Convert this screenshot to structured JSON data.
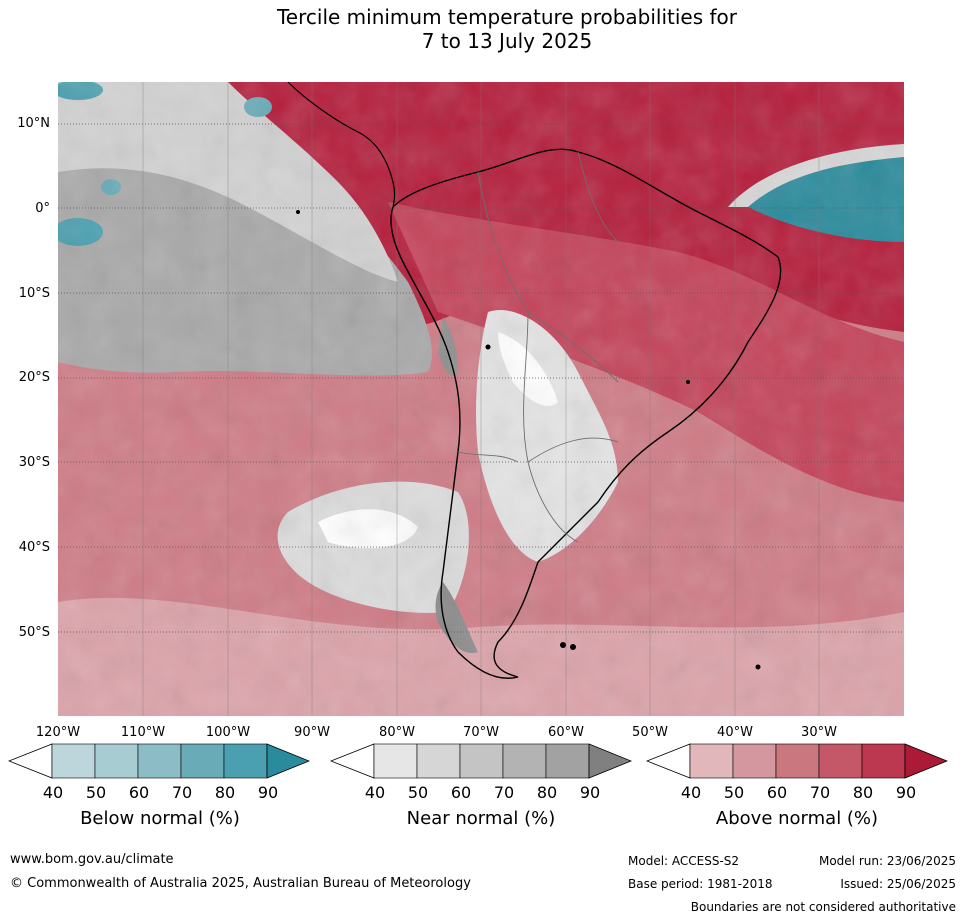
{
  "title_line1": "Tercile minimum temperature probabilities for",
  "title_line2": "7 to 13 July 2025",
  "lat_labels": [
    "10°N",
    "0°",
    "10°S",
    "20°S",
    "30°S",
    "40°S",
    "50°S"
  ],
  "lon_labels": [
    "120°W",
    "110°W",
    "100°W",
    "90°W",
    "80°W",
    "70°W",
    "60°W",
    "50°W",
    "40°W",
    "30°W"
  ],
  "colorbars": [
    {
      "name": "below",
      "title": "Below normal (%)",
      "ticks": [
        "40",
        "50",
        "60",
        "70",
        "80",
        "90"
      ],
      "colors": [
        "#ffffff",
        "#bdd6dc",
        "#a7ccd2",
        "#8cbcc5",
        "#6aabb8",
        "#4aa0b1",
        "#2a8b9c"
      ]
    },
    {
      "name": "near",
      "title": "Near normal (%)",
      "ticks": [
        "40",
        "50",
        "60",
        "70",
        "80",
        "90"
      ],
      "colors": [
        "#ffffff",
        "#e6e6e6",
        "#d6d6d6",
        "#c4c4c4",
        "#b3b3b3",
        "#a2a2a2",
        "#808080"
      ]
    },
    {
      "name": "above",
      "title": "Above normal (%)",
      "ticks": [
        "40",
        "50",
        "60",
        "70",
        "80",
        "90"
      ],
      "colors": [
        "#ffffff",
        "#e1b7bc",
        "#d5979f",
        "#cb7780",
        "#c45868",
        "#bb3850",
        "#ab1a36"
      ]
    }
  ],
  "footer": {
    "website": "www.bom.gov.au/climate",
    "copyright": "© Commonwealth of Australia 2025, Australian Bureau of Meteorology",
    "model": "Model: ACCESS-S2",
    "base_period": "Base period: 1981-2018",
    "model_run": "Model run: 23/06/2025",
    "issued": "Issued: 25/06/2025",
    "disclaimer": "Boundaries are not considered authoritative"
  }
}
